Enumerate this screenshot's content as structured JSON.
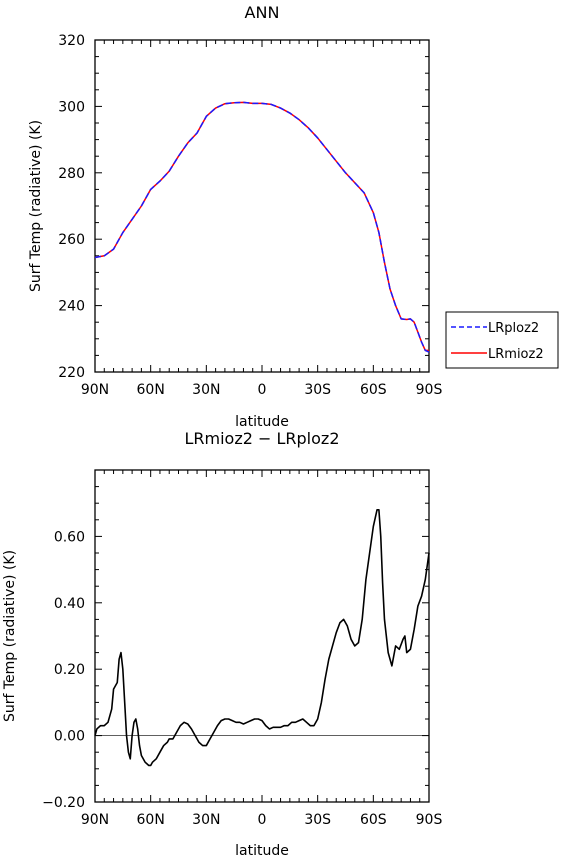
{
  "chart_data": [
    {
      "type": "line",
      "title": "ANN",
      "xlabel": "latitude",
      "ylabel": "Surf Temp (radiative) (K)",
      "xlim": [
        90,
        -90
      ],
      "ylim": [
        220,
        320
      ],
      "x_ticks": [
        {
          "value": 90,
          "label": "90N"
        },
        {
          "value": 60,
          "label": "60N"
        },
        {
          "value": 30,
          "label": "30N"
        },
        {
          "value": 0,
          "label": "0"
        },
        {
          "value": -30,
          "label": "30S"
        },
        {
          "value": -60,
          "label": "60S"
        },
        {
          "value": -90,
          "label": "90S"
        }
      ],
      "y_ticks": [
        {
          "value": 220,
          "label": "220"
        },
        {
          "value": 240,
          "label": "240"
        },
        {
          "value": 260,
          "label": "260"
        },
        {
          "value": 280,
          "label": "280"
        },
        {
          "value": 300,
          "label": "300"
        },
        {
          "value": 320,
          "label": "320"
        }
      ],
      "legend": "right",
      "series": [
        {
          "name": "LRploz2",
          "color": "#1a1aff",
          "dash": "dashed",
          "x": [
            90,
            85,
            80,
            75,
            70,
            65,
            60,
            55,
            50,
            45,
            40,
            35,
            30,
            25,
            20,
            15,
            10,
            5,
            0,
            -5,
            -10,
            -15,
            -20,
            -25,
            -30,
            -35,
            -40,
            -45,
            -50,
            -55,
            -60,
            -63,
            -66,
            -69,
            -72,
            -75,
            -78,
            -80,
            -82,
            -84,
            -86,
            -88,
            -90
          ],
          "values": [
            254.5,
            255,
            257,
            262,
            266,
            270,
            275,
            277.5,
            280.5,
            285,
            289,
            292,
            297,
            299.5,
            300.8,
            301.1,
            301.2,
            300.9,
            300.9,
            300.6,
            299.5,
            298,
            296,
            293.5,
            290.5,
            287,
            283.5,
            280,
            277,
            274,
            268,
            262,
            253,
            245,
            240,
            236,
            235.8,
            236,
            235,
            232,
            229,
            226.5,
            226
          ]
        },
        {
          "name": "LRmioz2",
          "color": "#ff0000",
          "dash": "solid",
          "x": [
            90,
            85,
            80,
            75,
            70,
            65,
            60,
            55,
            50,
            45,
            40,
            35,
            30,
            25,
            20,
            15,
            10,
            5,
            0,
            -5,
            -10,
            -15,
            -20,
            -25,
            -30,
            -35,
            -40,
            -45,
            -50,
            -55,
            -60,
            -63,
            -66,
            -69,
            -72,
            -75,
            -78,
            -80,
            -82,
            -84,
            -86,
            -88,
            -90
          ],
          "values": [
            254.5,
            255,
            257,
            262,
            266,
            270,
            275,
            277.5,
            280.5,
            285,
            289,
            292,
            297,
            299.5,
            300.8,
            301.1,
            301.2,
            300.9,
            300.9,
            300.6,
            299.5,
            298,
            296,
            293.5,
            290.5,
            287,
            283.5,
            280,
            277,
            274,
            268,
            262,
            253,
            245,
            240,
            236,
            235.8,
            236,
            235,
            232,
            229,
            226.5,
            226.5
          ]
        }
      ]
    },
    {
      "type": "line",
      "title": "LRmioz2 − LRploz2",
      "xlabel": "latitude",
      "ylabel": "Surf Temp (radiative) (K)",
      "xlim": [
        90,
        -90
      ],
      "ylim": [
        -0.2,
        0.8
      ],
      "x_ticks": [
        {
          "value": 90,
          "label": "90N"
        },
        {
          "value": 60,
          "label": "60N"
        },
        {
          "value": 30,
          "label": "30N"
        },
        {
          "value": 0,
          "label": "0"
        },
        {
          "value": -30,
          "label": "30S"
        },
        {
          "value": -60,
          "label": "60S"
        },
        {
          "value": -90,
          "label": "90S"
        }
      ],
      "y_ticks": [
        {
          "value": -0.2,
          "label": "−0.20"
        },
        {
          "value": 0.0,
          "label": "0.00"
        },
        {
          "value": 0.2,
          "label": "0.20"
        },
        {
          "value": 0.4,
          "label": "0.40"
        },
        {
          "value": 0.6,
          "label": "0.60"
        }
      ],
      "series": [
        {
          "name": "",
          "color": "#000000",
          "dash": "solid",
          "x": [
            90,
            89,
            87,
            85,
            83,
            81,
            80,
            78,
            77,
            76,
            75,
            74,
            73,
            72,
            71,
            70,
            69,
            68,
            67,
            66,
            65,
            63,
            61,
            60,
            59,
            57,
            55,
            53,
            51,
            50,
            48,
            46,
            44,
            42,
            40,
            38,
            36,
            34,
            32,
            30,
            28,
            26,
            24,
            22,
            20,
            18,
            16,
            14,
            12,
            10,
            8,
            6,
            4,
            2,
            0,
            -2,
            -4,
            -6,
            -8,
            -10,
            -12,
            -14,
            -16,
            -18,
            -20,
            -22,
            -24,
            -26,
            -28,
            -30,
            -32,
            -34,
            -36,
            -38,
            -40,
            -42,
            -44,
            -46,
            -48,
            -50,
            -52,
            -54,
            -56,
            -58,
            -60,
            -62,
            -63,
            -64,
            -65,
            -66,
            -68,
            -70,
            -72,
            -74,
            -76,
            -77,
            -78,
            -80,
            -82,
            -84,
            -86,
            -88,
            -90
          ],
          "values": [
            0.0,
            0.02,
            0.03,
            0.03,
            0.04,
            0.08,
            0.14,
            0.16,
            0.23,
            0.25,
            0.2,
            0.1,
            0.0,
            -0.05,
            -0.07,
            0.0,
            0.04,
            0.05,
            0.02,
            -0.03,
            -0.06,
            -0.08,
            -0.09,
            -0.09,
            -0.08,
            -0.07,
            -0.05,
            -0.03,
            -0.02,
            -0.01,
            -0.01,
            0.01,
            0.03,
            0.04,
            0.035,
            0.02,
            0.0,
            -0.02,
            -0.03,
            -0.03,
            -0.01,
            0.01,
            0.03,
            0.045,
            0.05,
            0.05,
            0.045,
            0.04,
            0.04,
            0.035,
            0.04,
            0.045,
            0.05,
            0.05,
            0.045,
            0.03,
            0.02,
            0.025,
            0.025,
            0.025,
            0.03,
            0.03,
            0.04,
            0.04,
            0.045,
            0.05,
            0.04,
            0.03,
            0.03,
            0.05,
            0.1,
            0.17,
            0.23,
            0.27,
            0.31,
            0.34,
            0.35,
            0.33,
            0.29,
            0.27,
            0.28,
            0.35,
            0.47,
            0.55,
            0.63,
            0.68,
            0.68,
            0.6,
            0.46,
            0.35,
            0.25,
            0.21,
            0.27,
            0.26,
            0.29,
            0.3,
            0.25,
            0.26,
            0.32,
            0.39,
            0.42,
            0.47,
            0.55
          ]
        }
      ]
    }
  ]
}
